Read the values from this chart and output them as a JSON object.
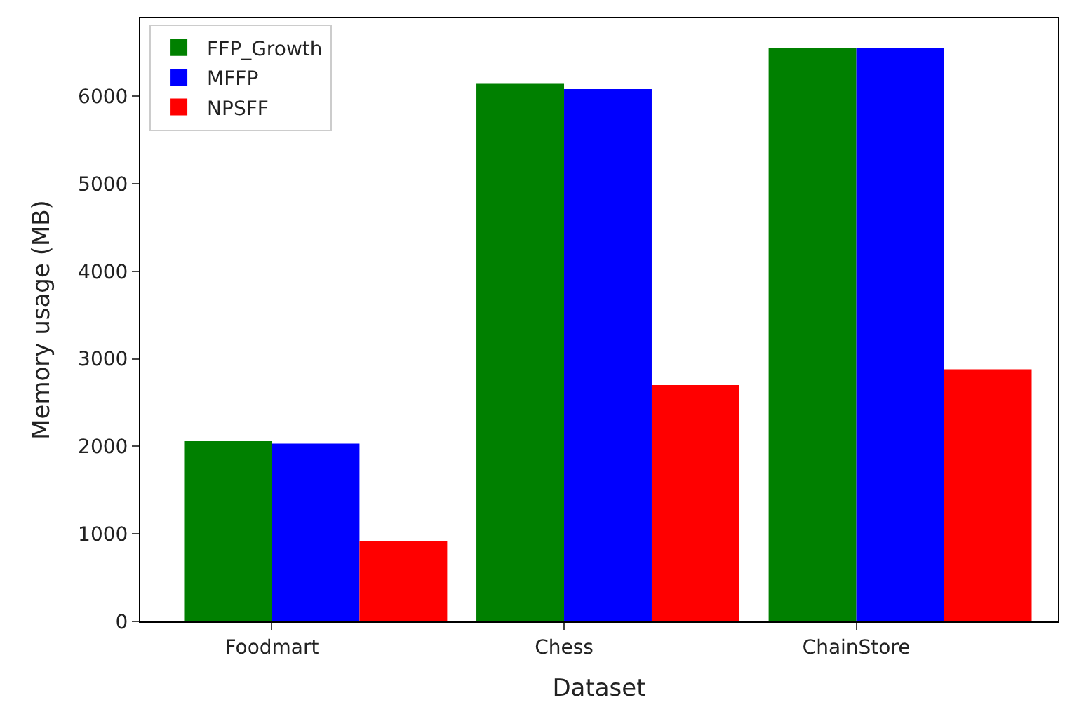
{
  "chart_data": {
    "type": "bar",
    "xlabel": "Dataset",
    "ylabel": "Memory usage (MB)",
    "categories": [
      "Foodmart",
      "Chess",
      "ChainStore"
    ],
    "series": [
      {
        "name": "FFP_Growth",
        "color": "#008000",
        "values": [
          2060,
          6140,
          6550
        ]
      },
      {
        "name": "MFFP",
        "color": "#0000ff",
        "values": [
          2030,
          6080,
          6550
        ]
      },
      {
        "name": "NPSFF",
        "color": "#ff0000",
        "values": [
          920,
          2700,
          2880
        ]
      }
    ],
    "ylim": [
      0,
      6890
    ],
    "yticks": [
      0,
      1000,
      2000,
      3000,
      4000,
      5000,
      6000
    ],
    "legend": "top left"
  }
}
